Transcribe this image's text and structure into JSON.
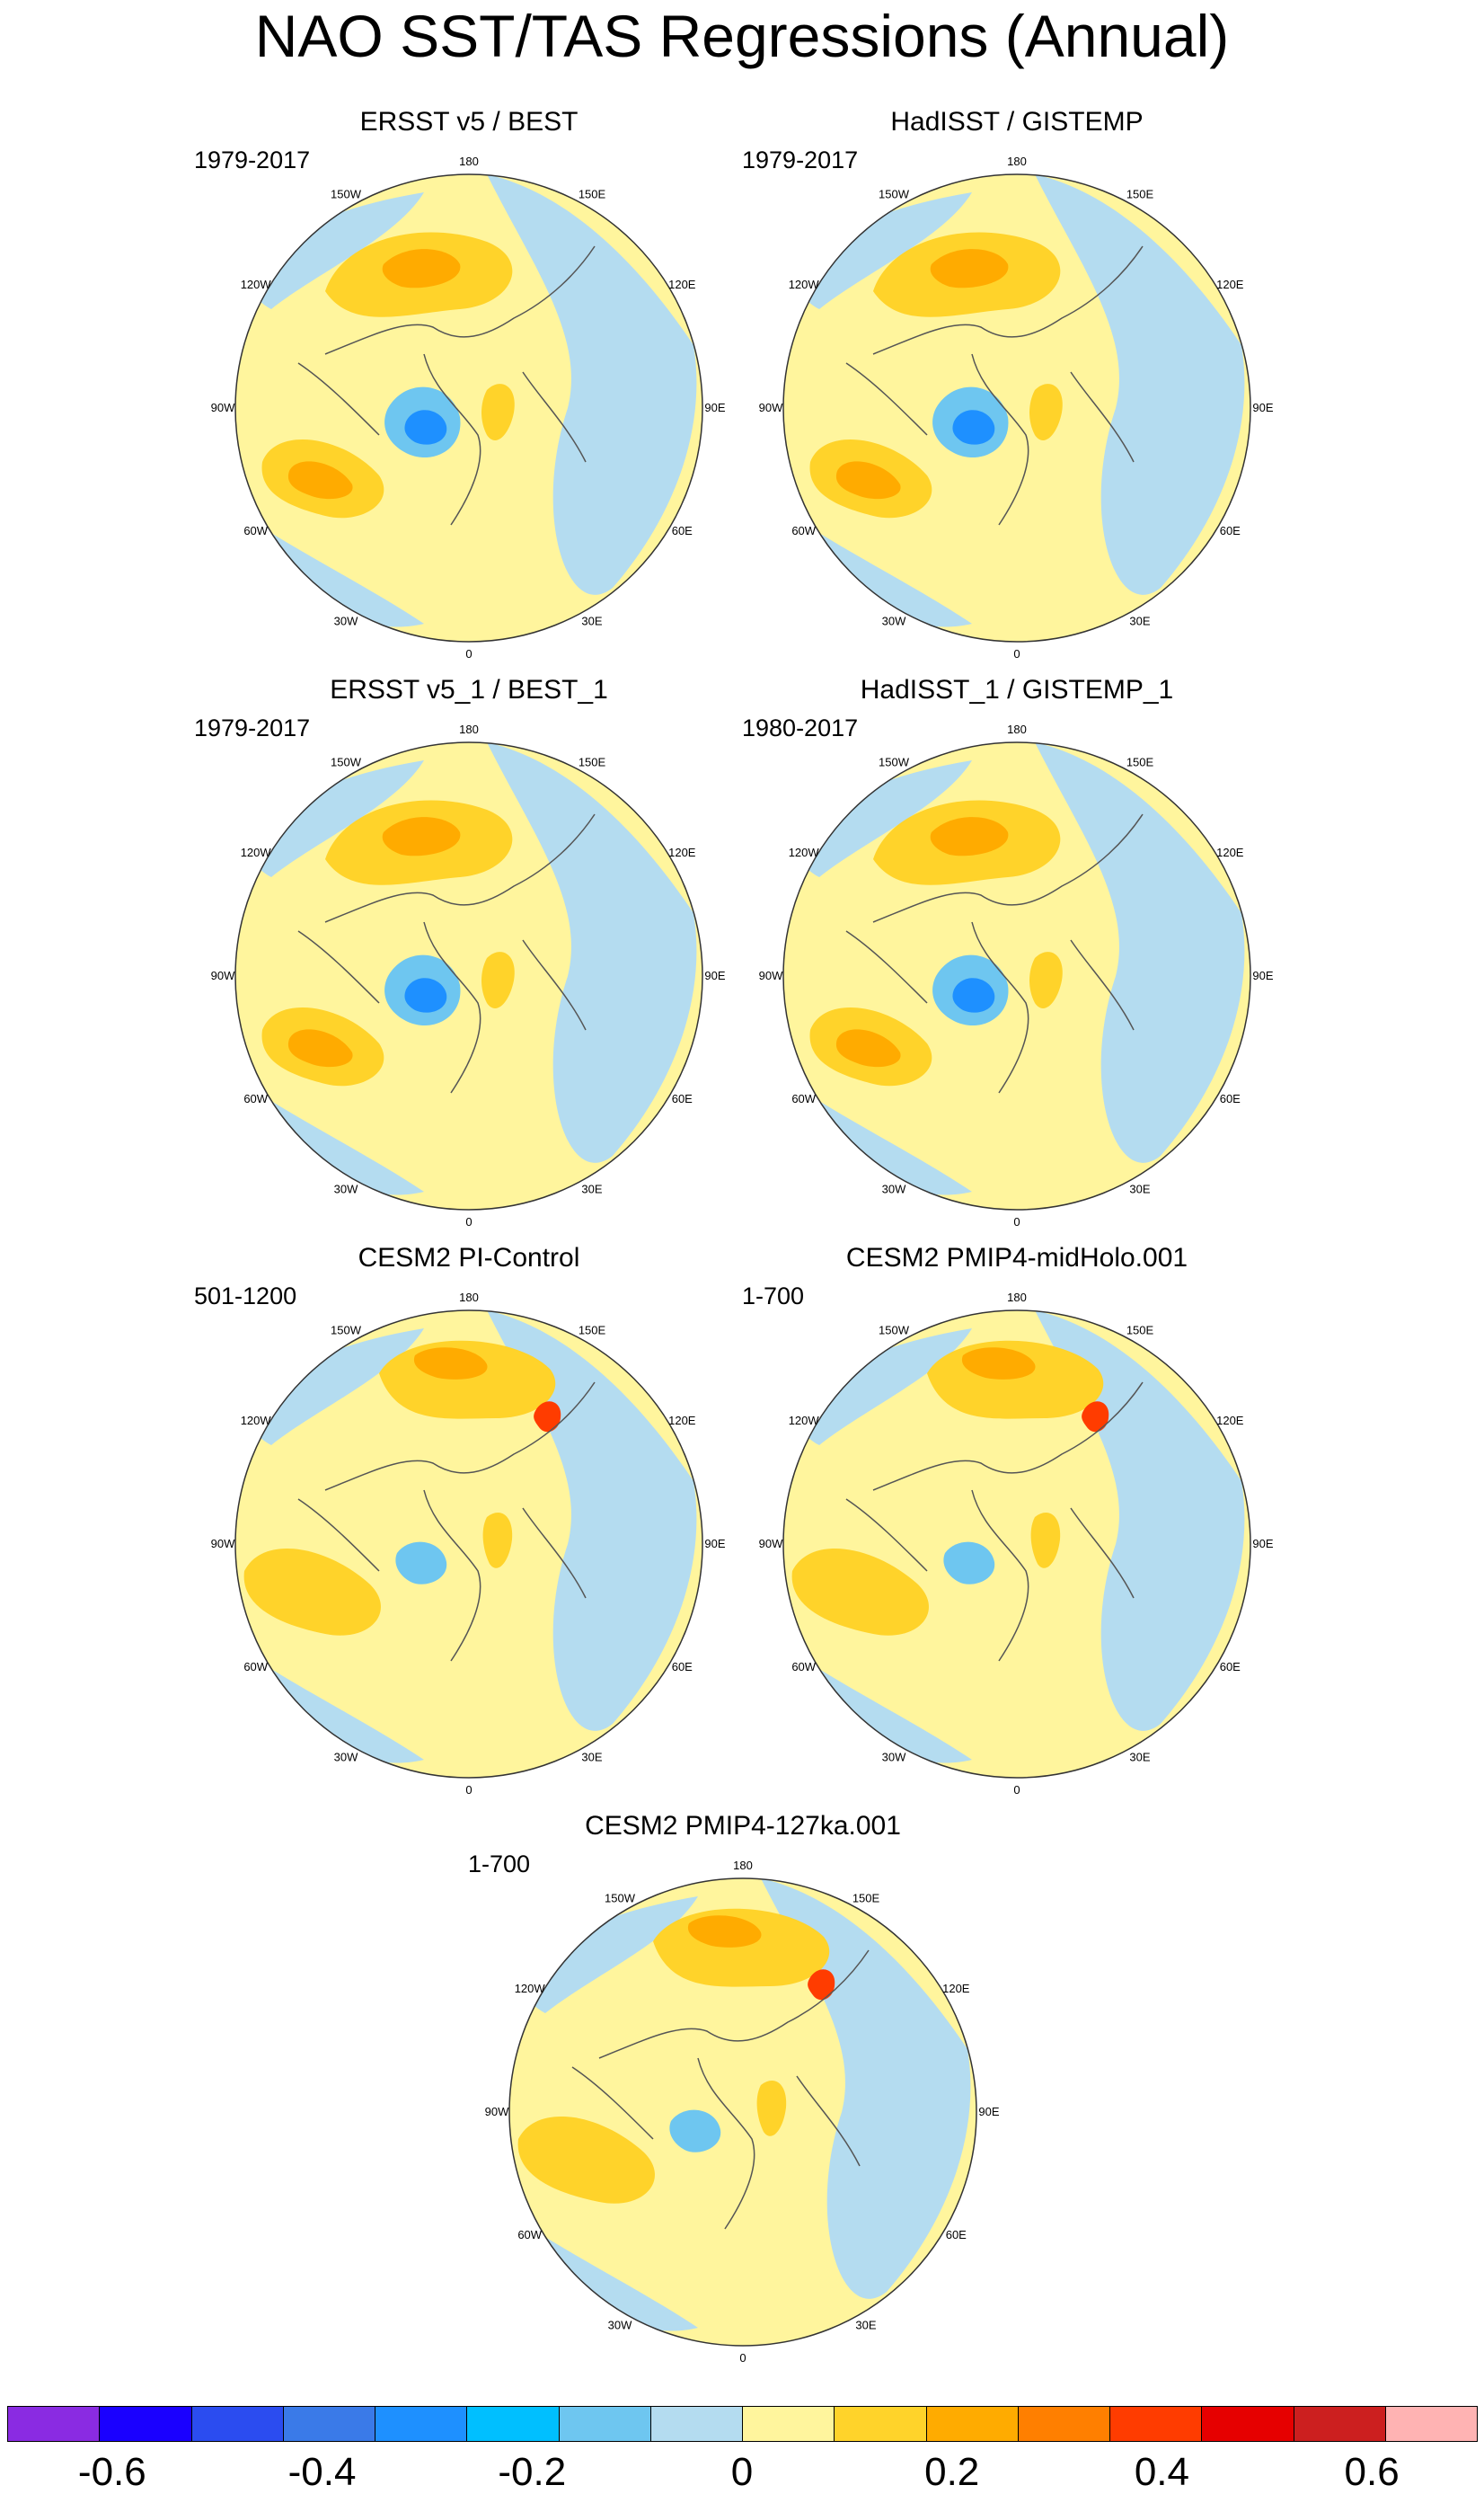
{
  "title": "NAO SST/TAS Regressions (Annual)",
  "panels": [
    {
      "title": "ERSST v5 / BEST",
      "period": "1979-2017"
    },
    {
      "title": "HadISST / GISTEMP",
      "period": "1979-2017"
    },
    {
      "title": "ERSST v5_1 / BEST_1",
      "period": "1979-2017"
    },
    {
      "title": "HadISST_1 / GISTEMP_1",
      "period": "1980-2017"
    },
    {
      "title": "CESM2 PI-Control",
      "period": "501-1200"
    },
    {
      "title": "CESM2 PMIP4-midHolo.001",
      "period": "1-700"
    },
    {
      "title": "CESM2 PMIP4-127ka.001",
      "period": "1-700"
    }
  ],
  "longitude_labels": [
    "180",
    "150E",
    "120E",
    "90E",
    "60E",
    "30E",
    "0",
    "30W",
    "60W",
    "90W",
    "120W",
    "150W"
  ],
  "chart_data": {
    "type": "heatmap",
    "title": "NAO SST/TAS Regressions (Annual)",
    "projection": "polar stereographic, Northern Hemisphere",
    "colorbar": {
      "colors": [
        "#8a2be2",
        "#1a00ff",
        "#2b4cf0",
        "#3a7ae8",
        "#1e90ff",
        "#00bfff",
        "#6ec6f0",
        "#b4dcf0",
        "#fff59d",
        "#ffd32a",
        "#ffab00",
        "#ff7f00",
        "#ff3c00",
        "#e60000",
        "#cc1f1f",
        "#ffb3b3"
      ],
      "tick_labels": [
        "-0.6",
        "-0.4",
        "-0.2",
        "0",
        "0.2",
        "0.4",
        "0.6"
      ],
      "tick_values": [
        -0.6,
        -0.4,
        -0.2,
        0,
        0.2,
        0.4,
        0.6
      ],
      "interval": 0.1,
      "range": [
        -0.7,
        0.7
      ]
    }
  }
}
